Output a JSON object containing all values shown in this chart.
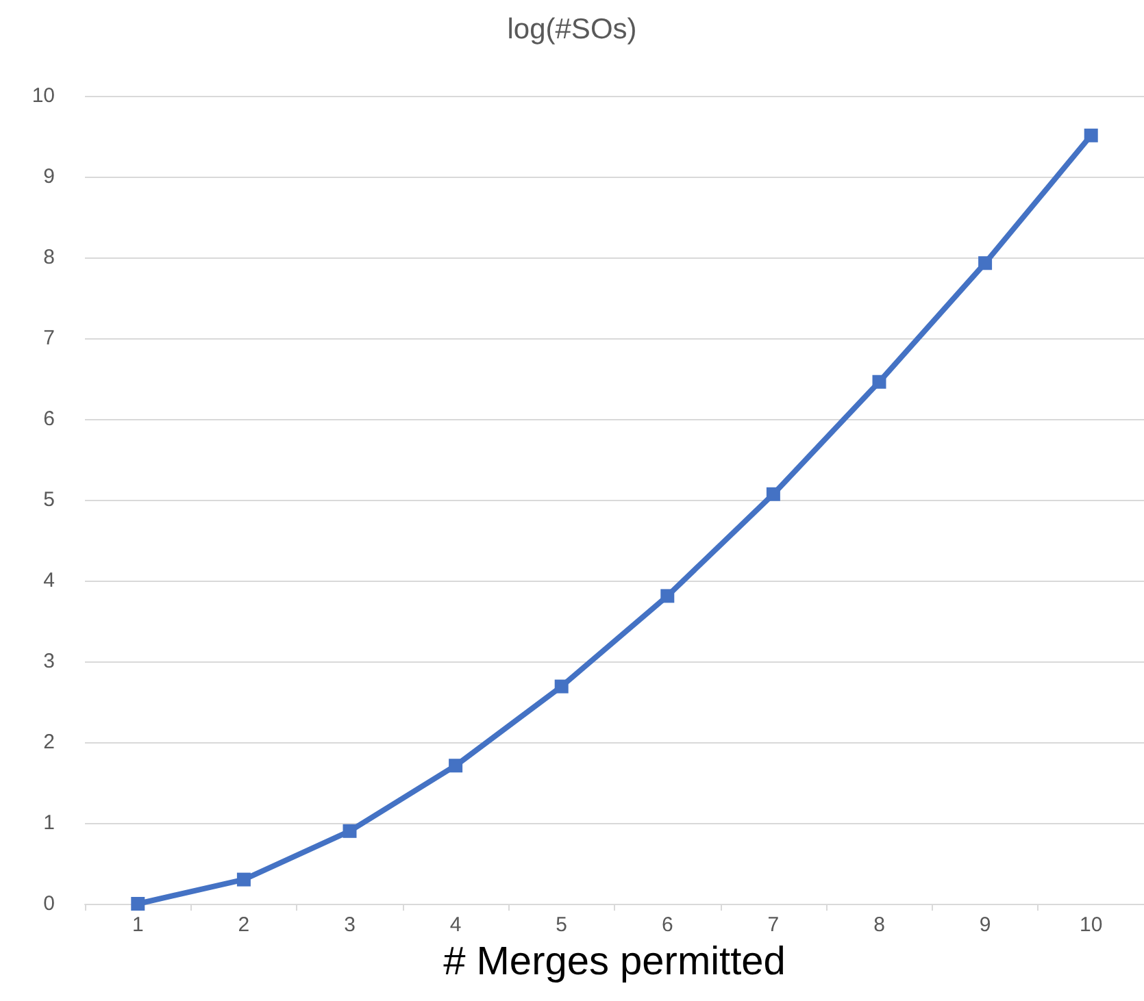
{
  "chart_data": {
    "type": "line",
    "title": "log(#SOs)",
    "xlabel": "# Merges permitted",
    "categories": [
      "1",
      "2",
      "3",
      "4",
      "5",
      "6",
      "7",
      "8",
      "9",
      "10"
    ],
    "series": [
      {
        "color": "#4472c4",
        "values": [
          0,
          0.3,
          0.9,
          1.71,
          2.69,
          3.81,
          5.07,
          6.46,
          7.93,
          9.51
        ]
      }
    ],
    "ylim": [
      0,
      10
    ],
    "yticks": [
      0,
      1,
      2,
      3,
      4,
      5,
      6,
      7,
      8,
      9,
      10
    ],
    "grid": "y",
    "marker": "square",
    "line_style": "solid"
  }
}
